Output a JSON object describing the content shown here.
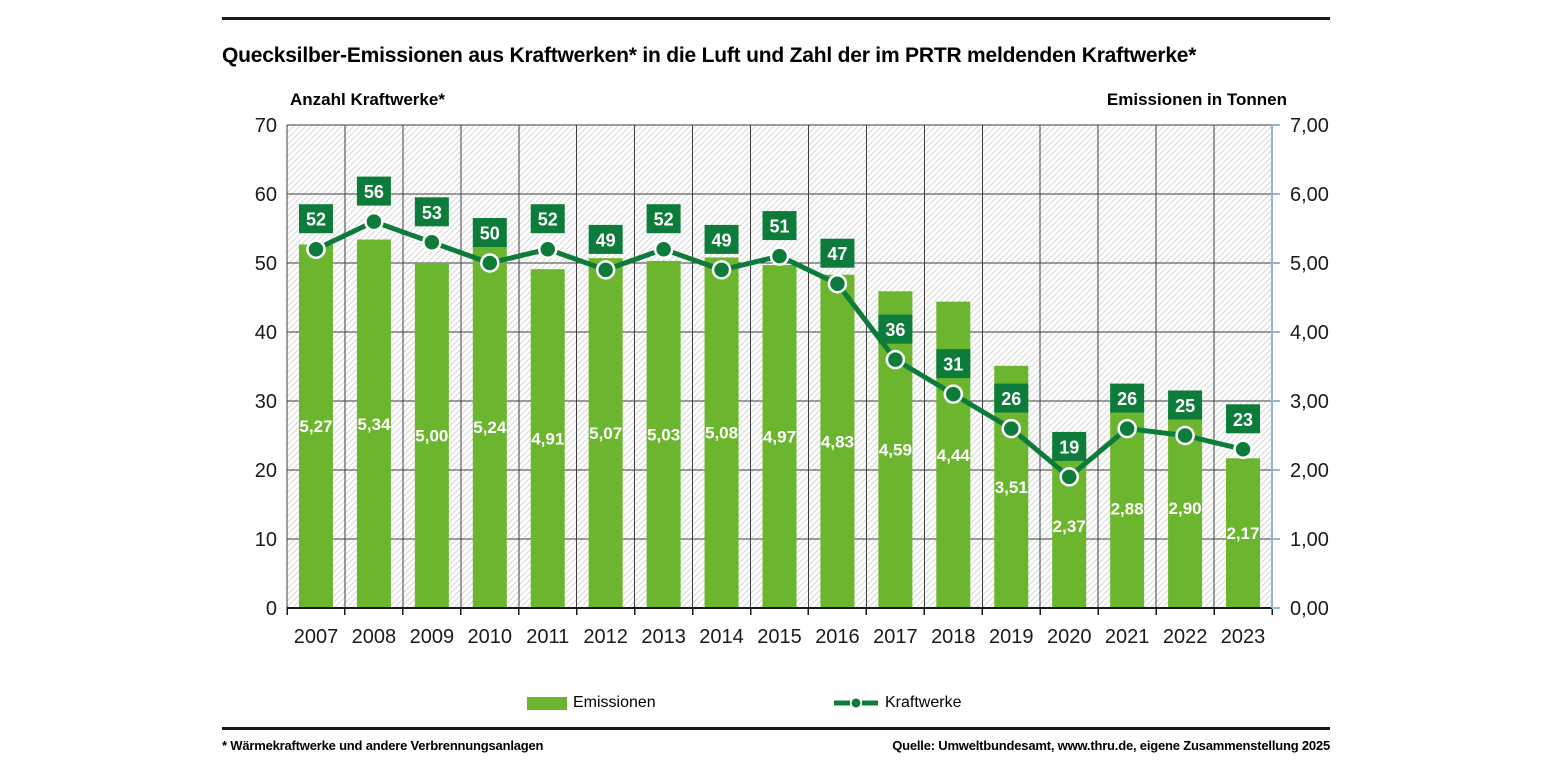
{
  "page": {
    "title": "Quecksilber-Emissionen aus Kraftwerken* in die Luft und Zahl der im PRTR meldenden Kraftwerke*",
    "footnote": "* Wärmekraftwerke und andere Verbrennungsanlagen",
    "source": "Quelle: Umweltbundesamt, www.thru.de, eigene Zusammenstellung 2025"
  },
  "chart_data": {
    "type": "bar+line",
    "categories": [
      "2007",
      "2008",
      "2009",
      "2010",
      "2011",
      "2012",
      "2013",
      "2014",
      "2015",
      "2016",
      "2017",
      "2018",
      "2019",
      "2020",
      "2021",
      "2022",
      "2023"
    ],
    "series": [
      {
        "name": "Emissionen",
        "type": "bar",
        "axis": "right",
        "unit": "Tonnen",
        "values": [
          5.27,
          5.34,
          5.0,
          5.24,
          4.91,
          5.07,
          5.03,
          5.08,
          4.97,
          4.83,
          4.59,
          4.44,
          3.51,
          2.37,
          2.88,
          2.9,
          2.17
        ]
      },
      {
        "name": "Kraftwerke",
        "type": "line",
        "axis": "left",
        "unit": "Anzahl",
        "values": [
          52,
          56,
          53,
          50,
          52,
          49,
          52,
          49,
          51,
          47,
          36,
          31,
          26,
          19,
          26,
          25,
          23
        ]
      }
    ],
    "left_axis": {
      "title": "Anzahl Kraftwerke*",
      "min": 0,
      "max": 70,
      "tick_step": 10,
      "decimals": 0
    },
    "right_axis": {
      "title": "Emissionen in Tonnen",
      "min": 0,
      "max": 7,
      "tick_step": 1,
      "decimals": 2,
      "decimal_separator": ","
    },
    "grid": true,
    "plot_background": "diagonal-hatch",
    "legend_position": "bottom",
    "colors": {
      "bar_green": "#6cb52e",
      "dark_green": "#0d7c3b",
      "grid": "#3f3f3f",
      "axis_black": "#1a1a1a",
      "right_axis_blue": "#94b2d2",
      "hatch": "#d6d6d6",
      "value_label": "#ffffff"
    }
  }
}
